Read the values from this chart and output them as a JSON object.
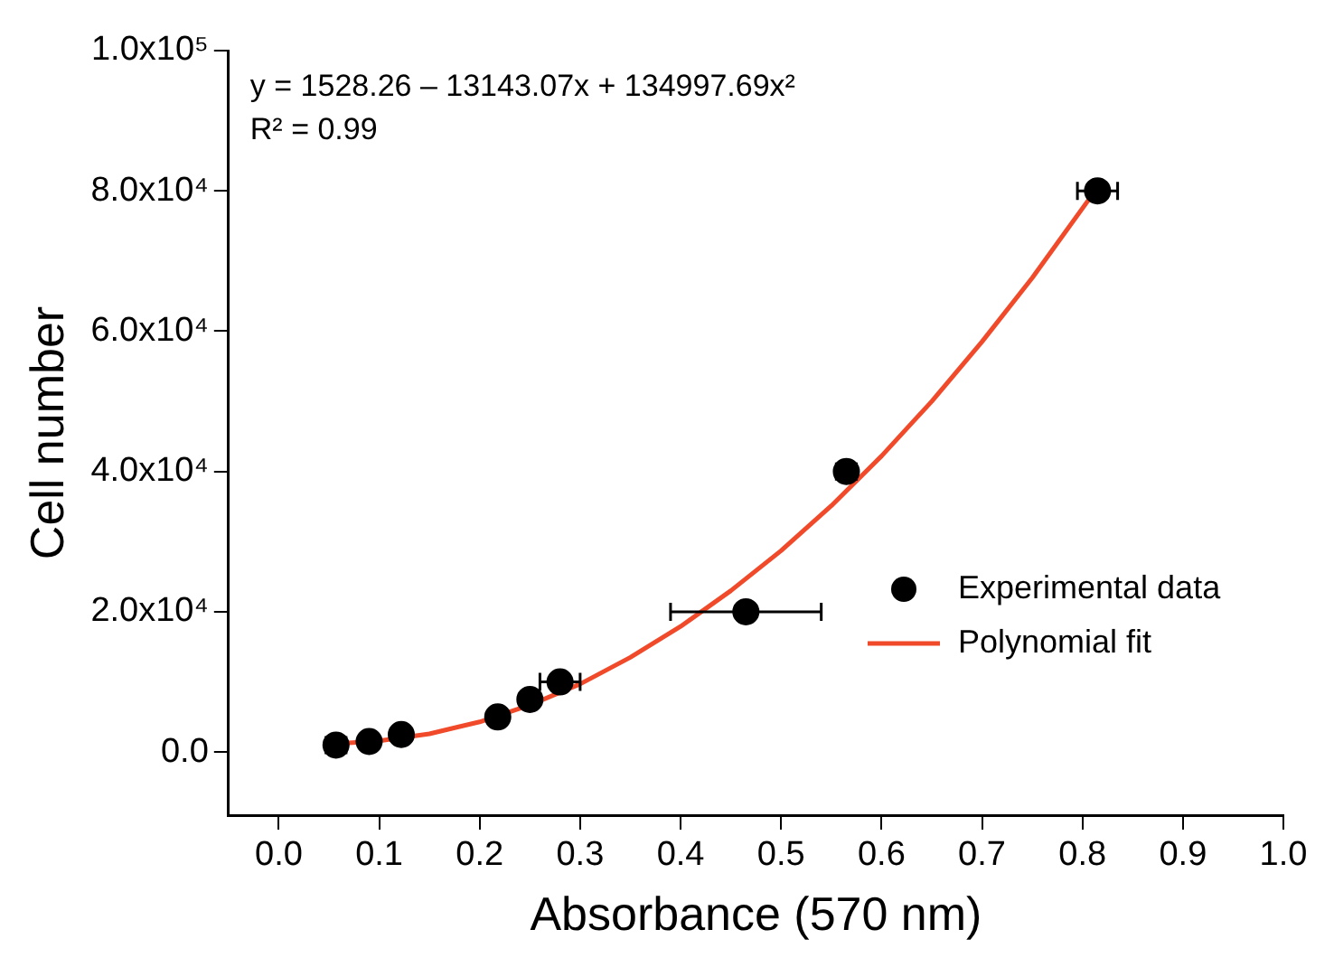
{
  "chart_data": {
    "type": "scatter",
    "xlabel": "Absorbance (570 nm)",
    "ylabel": "Cell number",
    "annotations": [
      "y = 1528.26 – 13143.07x + 134997.69x²",
      "R² = 0.99"
    ],
    "xlim": [
      -0.05,
      1.0
    ],
    "xticks": [
      {
        "value": 0,
        "label": "0.0"
      },
      0.1,
      0.2,
      0.3,
      0.4,
      0.5,
      0.6,
      0.7,
      0.8,
      0.9,
      {
        "value": 1,
        "label": "1.0"
      }
    ],
    "ylim": [
      -9000,
      100000
    ],
    "yticks": [
      {
        "value": 0,
        "label": "0.0"
      },
      {
        "value": 20000,
        "label": "2.0x10⁴"
      },
      {
        "value": 40000,
        "label": "4.0x10⁴"
      },
      {
        "value": 60000,
        "label": "6.0x10⁴"
      },
      {
        "value": 80000,
        "label": "8.0x10⁴"
      },
      {
        "value": 100000,
        "label": "1.0x10⁵"
      }
    ],
    "grid": false,
    "legend": "bottom right",
    "marker": "circle",
    "series": [
      {
        "name": "Experimental data",
        "type": "scatter",
        "color": "#000000",
        "x": [
          0.057,
          0.09,
          0.122,
          0.218,
          0.25,
          0.28,
          0.465,
          0.565,
          0.815
        ],
        "values": [
          1000,
          1500,
          2500,
          5000,
          7500,
          10000,
          20000,
          40000,
          80000
        ],
        "xerrors": [
          0.01,
          null,
          null,
          null,
          null,
          0.02,
          0.075,
          0.01,
          0.02
        ]
      },
      {
        "name": "Polynomial fit",
        "type": "line",
        "color": "#f04a2a",
        "marker": "none",
        "line_style": "solid",
        "x": [
          0.06,
          0.1,
          0.15,
          0.2,
          0.25,
          0.3,
          0.35,
          0.4,
          0.45,
          0.5,
          0.55,
          0.6,
          0.65,
          0.7,
          0.75,
          0.81
        ],
        "values": [
          1200,
          1600,
          2600,
          4300,
          6700,
          9700,
          13500,
          17900,
          23000,
          28700,
          35100,
          42200,
          50000,
          58500,
          67600,
          79500
        ]
      }
    ]
  }
}
